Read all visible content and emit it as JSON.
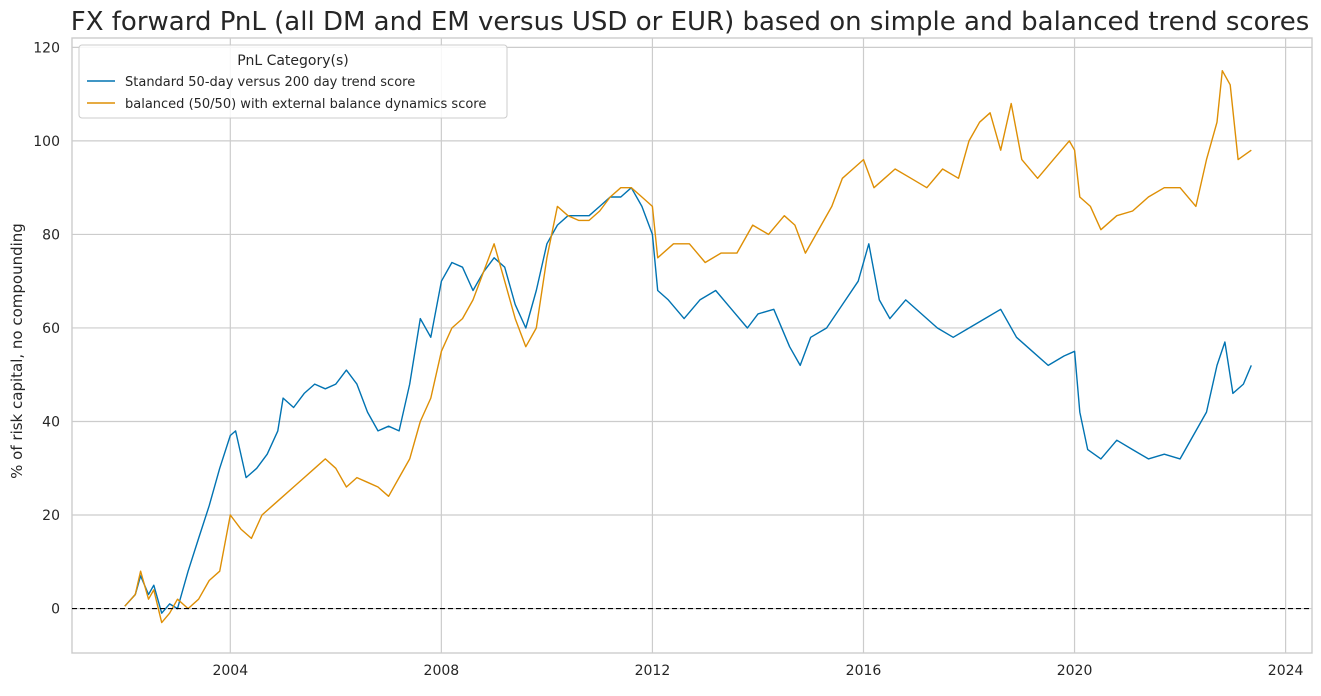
{
  "chart_data": {
    "type": "line",
    "title": "FX forward PnL (all DM and EM versus USD or EUR) based on simple and balanced trend scores",
    "xlabel": "",
    "ylabel": "% of risk capital, no compounding",
    "xlim": [
      2001.0,
      2024.5
    ],
    "ylim": [
      -9.5,
      122
    ],
    "x_ticks": [
      2004,
      2008,
      2012,
      2016,
      2020,
      2024
    ],
    "x_tick_labels": [
      "2004",
      "2008",
      "2012",
      "2016",
      "2020",
      "2024"
    ],
    "y_ticks": [
      0,
      20,
      40,
      60,
      80,
      100,
      120
    ],
    "y_tick_labels": [
      "0",
      "20",
      "40",
      "60",
      "80",
      "100",
      "120"
    ],
    "grid": true,
    "reference_line": {
      "y": 0,
      "style": "dashed",
      "color": "#000000"
    },
    "legend": {
      "title": "PnL Category(s)",
      "placement": "top-left"
    },
    "series": [
      {
        "name": "Standard 50-day versus 200 day trend score",
        "color": "#0173b2",
        "x": [
          2002.0,
          2002.2,
          2002.3,
          2002.45,
          2002.55,
          2002.7,
          2002.85,
          2003.0,
          2003.2,
          2003.4,
          2003.6,
          2003.8,
          2004.0,
          2004.1,
          2004.3,
          2004.5,
          2004.7,
          2004.9,
          2005.0,
          2005.2,
          2005.4,
          2005.6,
          2005.8,
          2006.0,
          2006.2,
          2006.4,
          2006.6,
          2006.8,
          2007.0,
          2007.2,
          2007.4,
          2007.6,
          2007.8,
          2008.0,
          2008.2,
          2008.4,
          2008.6,
          2008.8,
          2009.0,
          2009.2,
          2009.4,
          2009.6,
          2009.8,
          2010.0,
          2010.2,
          2010.4,
          2010.6,
          2010.8,
          2011.0,
          2011.2,
          2011.4,
          2011.6,
          2011.8,
          2012.0,
          2012.1,
          2012.3,
          2012.6,
          2012.9,
          2013.2,
          2013.5,
          2013.8,
          2014.0,
          2014.3,
          2014.6,
          2014.8,
          2015.0,
          2015.3,
          2015.6,
          2015.9,
          2016.1,
          2016.3,
          2016.5,
          2016.8,
          2017.1,
          2017.4,
          2017.7,
          2018.0,
          2018.3,
          2018.6,
          2018.9,
          2019.2,
          2019.5,
          2019.8,
          2020.0,
          2020.1,
          2020.25,
          2020.5,
          2020.8,
          2021.1,
          2021.4,
          2021.7,
          2022.0,
          2022.3,
          2022.5,
          2022.7,
          2022.85,
          2023.0,
          2023.2,
          2023.35
        ],
        "values": [
          0.5,
          3,
          7,
          3,
          5,
          -1,
          1,
          0,
          8,
          15,
          22,
          30,
          37,
          38,
          28,
          30,
          33,
          38,
          45,
          43,
          46,
          48,
          47,
          48,
          51,
          48,
          42,
          38,
          39,
          38,
          48,
          62,
          58,
          70,
          74,
          73,
          68,
          72,
          75,
          73,
          65,
          60,
          68,
          78,
          82,
          84,
          84,
          84,
          86,
          88,
          88,
          90,
          86,
          80,
          68,
          66,
          62,
          66,
          68,
          64,
          60,
          63,
          64,
          56,
          52,
          58,
          60,
          65,
          70,
          78,
          66,
          62,
          66,
          63,
          60,
          58,
          60,
          62,
          64,
          58,
          55,
          52,
          54,
          55,
          42,
          34,
          32,
          36,
          34,
          32,
          33,
          32,
          38,
          42,
          52,
          57,
          46,
          48,
          52
        ]
      },
      {
        "name": "balanced (50/50) with external balance dynamics score",
        "color": "#de8f05",
        "x": [
          2002.0,
          2002.2,
          2002.3,
          2002.45,
          2002.55,
          2002.7,
          2002.85,
          2003.0,
          2003.2,
          2003.4,
          2003.6,
          2003.8,
          2004.0,
          2004.2,
          2004.4,
          2004.6,
          2004.8,
          2005.0,
          2005.2,
          2005.4,
          2005.6,
          2005.8,
          2006.0,
          2006.2,
          2006.4,
          2006.6,
          2006.8,
          2007.0,
          2007.2,
          2007.4,
          2007.6,
          2007.8,
          2008.0,
          2008.2,
          2008.4,
          2008.6,
          2008.8,
          2009.0,
          2009.2,
          2009.4,
          2009.6,
          2009.8,
          2010.0,
          2010.2,
          2010.4,
          2010.6,
          2010.8,
          2011.0,
          2011.2,
          2011.4,
          2011.6,
          2011.8,
          2012.0,
          2012.1,
          2012.4,
          2012.7,
          2013.0,
          2013.3,
          2013.6,
          2013.9,
          2014.2,
          2014.5,
          2014.7,
          2014.9,
          2015.1,
          2015.4,
          2015.6,
          2015.8,
          2016.0,
          2016.2,
          2016.4,
          2016.6,
          2016.9,
          2017.2,
          2017.5,
          2017.8,
          2018.0,
          2018.2,
          2018.4,
          2018.6,
          2018.8,
          2019.0,
          2019.3,
          2019.6,
          2019.9,
          2020.0,
          2020.1,
          2020.3,
          2020.5,
          2020.8,
          2021.1,
          2021.4,
          2021.7,
          2022.0,
          2022.3,
          2022.5,
          2022.7,
          2022.8,
          2022.95,
          2023.1,
          2023.35
        ],
        "values": [
          0.5,
          3,
          8,
          2,
          4,
          -3,
          -1,
          2,
          0,
          2,
          6,
          8,
          20,
          17,
          15,
          20,
          22,
          24,
          26,
          28,
          30,
          32,
          30,
          26,
          28,
          27,
          26,
          24,
          28,
          32,
          40,
          45,
          55,
          60,
          62,
          66,
          72,
          78,
          70,
          62,
          56,
          60,
          75,
          86,
          84,
          83,
          83,
          85,
          88,
          90,
          90,
          88,
          86,
          75,
          78,
          78,
          74,
          76,
          76,
          82,
          80,
          84,
          82,
          76,
          80,
          86,
          92,
          94,
          96,
          90,
          92,
          94,
          92,
          90,
          94,
          92,
          100,
          104,
          106,
          98,
          108,
          96,
          92,
          96,
          100,
          98,
          88,
          86,
          81,
          84,
          85,
          88,
          90,
          90,
          86,
          96,
          104,
          115,
          112,
          96,
          98
        ]
      }
    ]
  }
}
